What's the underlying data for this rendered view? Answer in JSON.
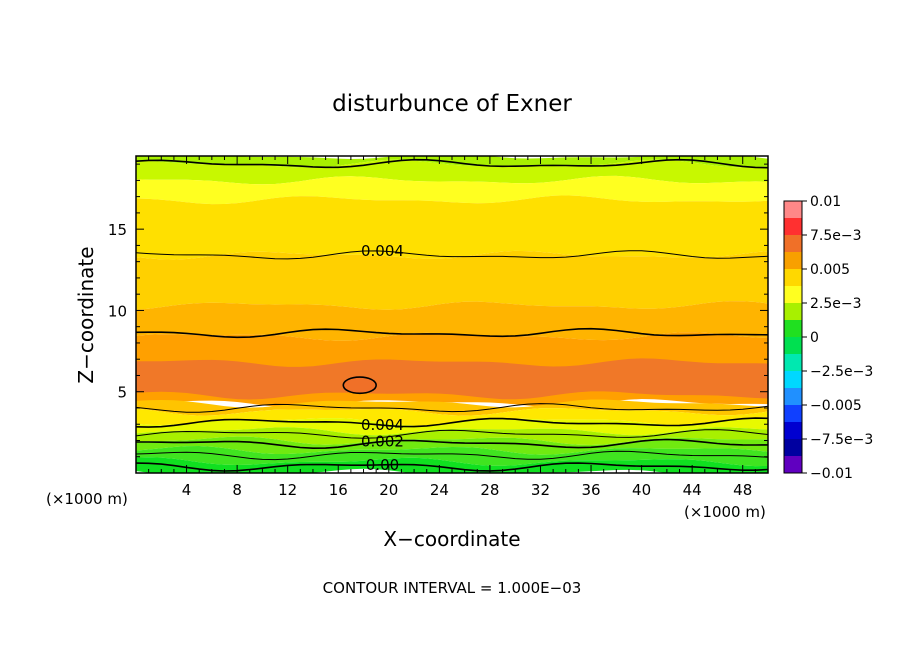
{
  "chart_data": {
    "type": "heatmap",
    "title": "disturbunce of Exner",
    "xlabel": "X−coordinate",
    "ylabel": "Z−coordinate",
    "x_unit": "(×1000 m)",
    "y_unit": "(×1000 m)",
    "footer": "CONTOUR INTERVAL = 1.000E−03",
    "xlim": [
      0,
      50
    ],
    "ylim": [
      0,
      19.5
    ],
    "x_ticks": [
      4,
      8,
      12,
      16,
      20,
      24,
      28,
      32,
      36,
      40,
      44,
      48
    ],
    "y_ticks": [
      5,
      10,
      15
    ],
    "contour_interval": 0.001,
    "colorbar": {
      "range": [
        -0.01,
        0.01
      ],
      "tick_labels": [
        "0.01",
        "7.5e−3",
        "0.005",
        "2.5e−3",
        "0",
        "−2.5e−3",
        "−0.005",
        "−7.5e−3",
        "−0.01"
      ],
      "colors": [
        "#ff8888",
        "#ff3030",
        "#f07028",
        "#f8a000",
        "#ffd800",
        "#ffff20",
        "#a8f000",
        "#20e020",
        "#00e050",
        "#00e8b0",
        "#00d8ff",
        "#2090ff",
        "#1040ff",
        "#0000d0",
        "#0000a0",
        "#6000c0"
      ]
    },
    "field_bands": [
      {
        "z": [
          19.0,
          19.5
        ],
        "value_range": [
          0.002,
          0.0025
        ],
        "color": "#a8f000"
      },
      {
        "z": [
          18.0,
          19.0
        ],
        "value_range": [
          0.0025,
          0.003
        ],
        "color": "#c8f800"
      },
      {
        "z": [
          16.8,
          18.0
        ],
        "value_range": [
          0.003,
          0.0035
        ],
        "color": "#ffff20"
      },
      {
        "z": [
          13.4,
          16.8
        ],
        "value_range": [
          0.0035,
          0.004
        ],
        "color": "#ffe000"
      },
      {
        "z": [
          10.3,
          13.4
        ],
        "value_range": [
          0.004,
          0.0045
        ],
        "color": "#ffd000"
      },
      {
        "z": [
          8.4,
          10.3
        ],
        "value_range": [
          0.0045,
          0.005
        ],
        "color": "#ffb400"
      },
      {
        "z": [
          4.3,
          8.4
        ],
        "value_range": [
          0.005,
          0.0055
        ],
        "color": "#ffa000"
      },
      {
        "z": [
          4.8,
          6.8
        ],
        "value_range": [
          0.0055,
          0.006
        ],
        "color": "#f07828"
      },
      {
        "z": [
          3.8,
          4.3
        ],
        "value_range": [
          0.0045,
          0.005
        ],
        "color": "#ffc400"
      },
      {
        "z": [
          3.2,
          3.8
        ],
        "value_range": [
          0.004,
          0.0045
        ],
        "color": "#ffe800"
      },
      {
        "z": [
          2.6,
          3.2
        ],
        "value_range": [
          0.003,
          0.004
        ],
        "color": "#e8fa00"
      },
      {
        "z": [
          2.0,
          2.6
        ],
        "value_range": [
          0.002,
          0.003
        ],
        "color": "#a8f000"
      },
      {
        "z": [
          1.4,
          2.0
        ],
        "value_range": [
          0.001,
          0.002
        ],
        "color": "#70ea10"
      },
      {
        "z": [
          0.7,
          1.4
        ],
        "value_range": [
          0.0005,
          0.001
        ],
        "color": "#40e420"
      },
      {
        "z": [
          0.0,
          0.7
        ],
        "value_range": [
          0.0,
          0.0005
        ],
        "color": "#10e020"
      }
    ],
    "contour_lines": [
      {
        "z": 19.0,
        "label": ""
      },
      {
        "z": 13.4,
        "label": "0.004",
        "label_x": 17
      },
      {
        "z": 8.6,
        "label": ""
      },
      {
        "z": 4.0,
        "label": ""
      },
      {
        "z": 3.1,
        "label": "0.004",
        "label_x": 17
      },
      {
        "z": 2.4,
        "label": ""
      },
      {
        "z": 1.8,
        "label": "0.002",
        "label_x": 17
      },
      {
        "z": 1.1,
        "label": ""
      },
      {
        "z": 0.4,
        "label": "0.00",
        "label_x": 17
      }
    ],
    "closed_contour": {
      "x": 17.7,
      "z": 5.4,
      "rx": 1.3,
      "rz": 0.5
    }
  }
}
